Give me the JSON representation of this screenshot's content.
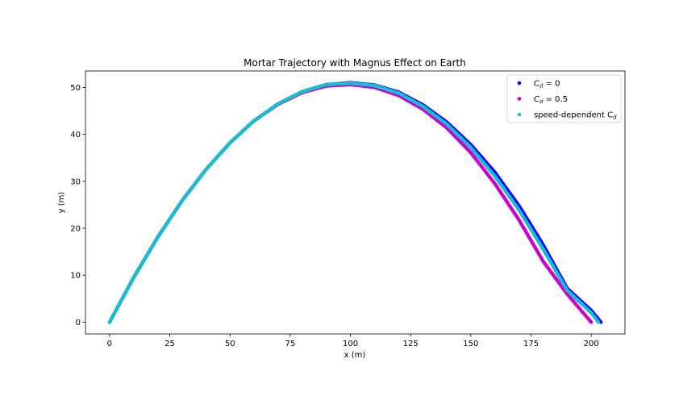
{
  "chart_data": {
    "type": "scatter",
    "title": "Mortar Trajectory with Magnus Effect on Earth",
    "xlabel": "x (m)",
    "ylabel": "y (m)",
    "xlim": [
      -10,
      214
    ],
    "ylim": [
      -2.5,
      53.5
    ],
    "x_ticks": [
      0,
      25,
      50,
      75,
      100,
      125,
      150,
      175,
      200
    ],
    "y_ticks": [
      0,
      10,
      20,
      30,
      40,
      50
    ],
    "legend": {
      "placement": "top-right",
      "entries": [
        {
          "series": 0,
          "prefix": "C",
          "sub": "d",
          "suffix": " = 0"
        },
        {
          "series": 1,
          "prefix": "C",
          "sub": "d",
          "suffix": " = 0.5"
        },
        {
          "series": 2,
          "prefix": "speed-dependent C",
          "sub": "d",
          "suffix": ""
        }
      ]
    },
    "series": [
      {
        "color": "#0000ff",
        "x": [
          0,
          10,
          20,
          30,
          40,
          50,
          60,
          70,
          80,
          90,
          100,
          110,
          120,
          130,
          140,
          150,
          160,
          170,
          180,
          190,
          200,
          204
        ],
        "y": [
          0,
          9.5,
          18.1,
          25.8,
          32.5,
          38.2,
          42.9,
          46.5,
          49.1,
          50.6,
          51.0,
          50.5,
          49.0,
          46.3,
          42.6,
          37.8,
          31.9,
          24.8,
          16.5,
          7.2,
          2.5,
          0
        ]
      },
      {
        "color": "#cc00cc",
        "x": [
          0,
          10,
          20,
          30,
          40,
          50,
          60,
          70,
          80,
          90,
          100,
          110,
          120,
          130,
          140,
          150,
          160,
          170,
          180,
          190,
          200
        ],
        "y": [
          0,
          9.5,
          18.1,
          25.8,
          32.5,
          38.2,
          42.9,
          46.4,
          48.9,
          50.3,
          50.6,
          50.0,
          48.3,
          45.4,
          41.4,
          36.1,
          29.5,
          21.8,
          13.0,
          6.0,
          0
        ]
      },
      {
        "color": "#17becf",
        "x": [
          0,
          10,
          20,
          30,
          40,
          50,
          60,
          70,
          80,
          90,
          100,
          110,
          120,
          130,
          140,
          150,
          160,
          170,
          180,
          190,
          200,
          203
        ],
        "y": [
          0,
          9.5,
          18.1,
          25.8,
          32.5,
          38.2,
          42.9,
          46.5,
          49.1,
          50.6,
          50.9,
          50.4,
          48.8,
          46.0,
          42.2,
          37.2,
          31.1,
          23.9,
          15.6,
          6.8,
          2.0,
          0
        ]
      }
    ]
  }
}
